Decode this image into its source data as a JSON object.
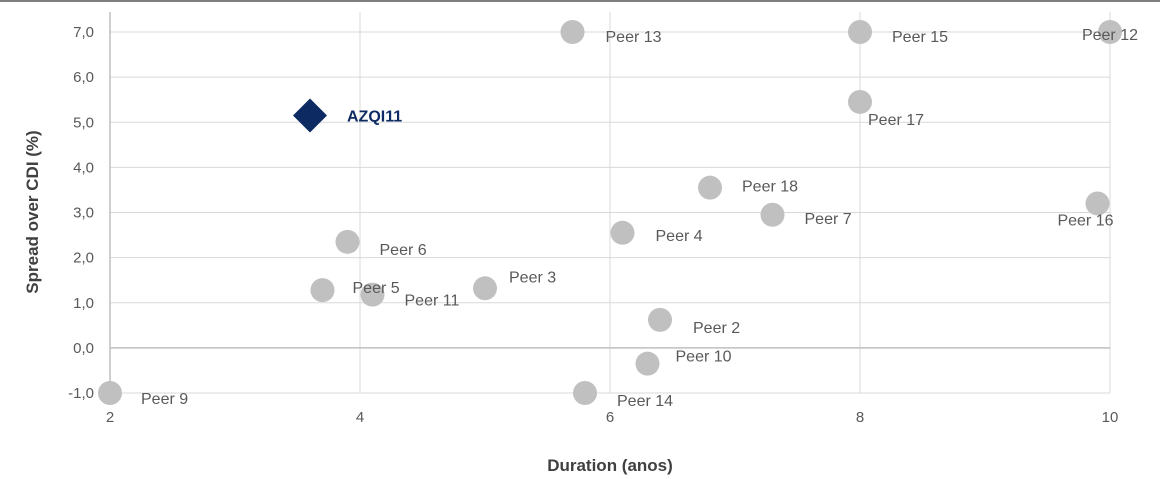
{
  "chart_data": {
    "type": "scatter",
    "title": "",
    "xlabel": "Duration (anos)",
    "ylabel": "Spread over CDI (%)",
    "xlim": [
      2,
      10
    ],
    "ylim": [
      -1,
      7
    ],
    "x_ticks": [
      2,
      4,
      6,
      8,
      10
    ],
    "x_tick_labels": [
      "2",
      "4",
      "6",
      "8",
      "10"
    ],
    "y_ticks": [
      -1,
      0,
      1,
      2,
      3,
      4,
      5,
      6,
      7
    ],
    "y_tick_labels": [
      "-1,0",
      "0,0",
      "1,0",
      "2,0",
      "3,0",
      "4,0",
      "5,0",
      "6,0",
      "7,0"
    ],
    "grid": true,
    "legend": "none",
    "colors": {
      "peer": "#c0c0c0",
      "highlight": "#0d2a63",
      "grid": "#d9d9d9",
      "axis": "#bfbfbf"
    },
    "highlight": {
      "label": "AZQI11",
      "x": 3.6,
      "y": 5.15,
      "marker": "diamond"
    },
    "peers": [
      {
        "label": "Peer 2",
        "x": 6.4,
        "y": 0.62
      },
      {
        "label": "Peer 3",
        "x": 5.0,
        "y": 1.32
      },
      {
        "label": "Peer 4",
        "x": 6.1,
        "y": 2.55
      },
      {
        "label": "Peer 5",
        "x": 3.7,
        "y": 1.28
      },
      {
        "label": "Peer 6",
        "x": 3.9,
        "y": 2.35
      },
      {
        "label": "Peer 7",
        "x": 7.3,
        "y": 2.95
      },
      {
        "label": "Peer 9",
        "x": 2.0,
        "y": -1.0
      },
      {
        "label": "Peer 10",
        "x": 6.3,
        "y": -0.35
      },
      {
        "label": "Peer 11",
        "x": 4.1,
        "y": 1.18
      },
      {
        "label": "Peer 12",
        "x": 10.0,
        "y": 7.0
      },
      {
        "label": "Peer 13",
        "x": 5.7,
        "y": 7.0
      },
      {
        "label": "Peer 14",
        "x": 5.8,
        "y": -1.0
      },
      {
        "label": "Peer 15",
        "x": 8.0,
        "y": 7.0
      },
      {
        "label": "Peer 16",
        "x": 9.9,
        "y": 3.2
      },
      {
        "label": "Peer 17",
        "x": 8.0,
        "y": 5.45
      },
      {
        "label": "Peer 18",
        "x": 6.8,
        "y": 3.55
      }
    ]
  }
}
